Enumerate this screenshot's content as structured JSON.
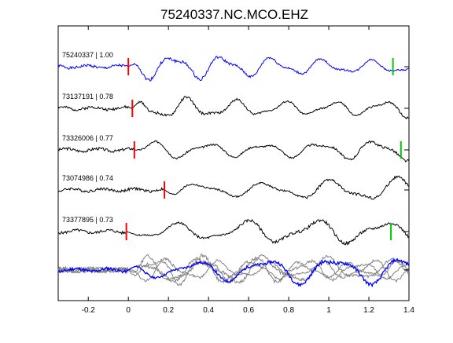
{
  "chart_data": {
    "type": "line",
    "title": "75240337.NC.MCO.EHZ",
    "xlabel": "",
    "ylabel": "",
    "xlim": [
      -0.35,
      1.4
    ],
    "x_ticks": [
      -0.2,
      0,
      0.2,
      0.4,
      0.6,
      0.8,
      1.0,
      1.2,
      1.4
    ],
    "x_tick_labels": [
      "-0.2",
      "0",
      "0.2",
      "0.4",
      "0.6",
      "0.8",
      "1",
      "1.2",
      "1.4"
    ],
    "grid": false,
    "legend": "none",
    "series": [
      {
        "label": "75240337 | 1.00",
        "color": "#0000ff",
        "red_pick_x": 0.0,
        "green_pick_x": 1.32,
        "onset": 0.0,
        "seed": 1
      },
      {
        "label": "73137191 | 0.78",
        "color": "#000000",
        "red_pick_x": 0.02,
        "green_pick_x": null,
        "onset": 0.02,
        "seed": 2
      },
      {
        "label": "73326006 | 0.77",
        "color": "#000000",
        "red_pick_x": 0.03,
        "green_pick_x": 1.36,
        "onset": 0.03,
        "seed": 3
      },
      {
        "label": "73074986 | 0.74",
        "color": "#000000",
        "red_pick_x": 0.18,
        "green_pick_x": null,
        "onset": 0.18,
        "seed": 4
      },
      {
        "label": "73377895 | 0.73",
        "color": "#000000",
        "red_pick_x": -0.01,
        "green_pick_x": 1.31,
        "onset": -0.01,
        "seed": 5
      }
    ],
    "stack": {
      "colors": [
        "#808080",
        "#0000ff"
      ]
    },
    "pick_colors": {
      "red": "#ff0000",
      "green": "#00cc00"
    }
  }
}
